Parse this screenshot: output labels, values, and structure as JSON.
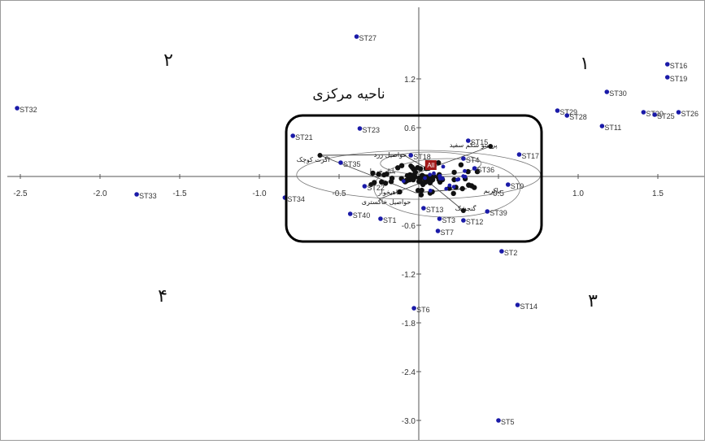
{
  "chart_data": {
    "type": "scatter",
    "title": "",
    "xlabel": "",
    "ylabel": "",
    "xlim": [
      -2.6,
      1.8
    ],
    "ylim": [
      -3.1,
      1.8
    ],
    "x_ticks": [
      -2.5,
      -2.0,
      -1.5,
      -1.0,
      -0.5,
      0.5,
      1.0,
      1.5
    ],
    "x_tick_labels": [
      "-2.5",
      "-2.0",
      "-1.5",
      "-1.0",
      "-0.5",
      "0.5",
      "1.0",
      "1.5"
    ],
    "y_ticks": [
      1.2,
      0.6,
      -0.6,
      -1.2,
      -1.8,
      -2.4,
      -3.0
    ],
    "y_tick_labels": [
      "1.2",
      "0.6",
      "-0.6",
      "-1.2",
      "-1.8",
      "-2.4",
      "-3.0"
    ],
    "grid": false,
    "point_color": "#1a1aa8",
    "category_color": "#111111",
    "highlight_color": "#a01818",
    "points": [
      {
        "label": "ST27",
        "x": -0.39,
        "y": 1.72
      },
      {
        "label": "ST16",
        "x": 1.56,
        "y": 1.38
      },
      {
        "label": "ST19",
        "x": 1.56,
        "y": 1.22
      },
      {
        "label": "ST32",
        "x": -2.52,
        "y": 0.84
      },
      {
        "label": "ST30",
        "x": 1.18,
        "y": 1.04
      },
      {
        "label": "ST29",
        "x": 0.87,
        "y": 0.81
      },
      {
        "label": "ST28",
        "x": 0.93,
        "y": 0.75
      },
      {
        "label": "ST20",
        "x": 1.41,
        "y": 0.79
      },
      {
        "label": "ST25",
        "x": 1.48,
        "y": 0.76
      },
      {
        "label": "ST26",
        "x": 1.63,
        "y": 0.79
      },
      {
        "label": "ST11",
        "x": 1.15,
        "y": 0.62
      },
      {
        "label": "ST21",
        "x": -0.79,
        "y": 0.5
      },
      {
        "label": "ST23",
        "x": -0.37,
        "y": 0.59
      },
      {
        "label": "ST15",
        "x": 0.31,
        "y": 0.44
      },
      {
        "label": "ST17",
        "x": 0.63,
        "y": 0.27
      },
      {
        "label": "ST4",
        "x": 0.28,
        "y": 0.22
      },
      {
        "label": "ST18",
        "x": -0.05,
        "y": 0.26
      },
      {
        "label": "ST35",
        "x": -0.49,
        "y": 0.17
      },
      {
        "label": "ST36",
        "x": 0.35,
        "y": 0.1
      },
      {
        "label": "ST22",
        "x": -0.34,
        "y": -0.12
      },
      {
        "label": "ST9",
        "x": 0.56,
        "y": -0.1
      },
      {
        "label": "ST34",
        "x": -0.84,
        "y": -0.26
      },
      {
        "label": "ST40",
        "x": -0.43,
        "y": -0.46
      },
      {
        "label": "ST1",
        "x": -0.24,
        "y": -0.52
      },
      {
        "label": "ST13",
        "x": 0.03,
        "y": -0.39
      },
      {
        "label": "ST3",
        "x": 0.13,
        "y": -0.52
      },
      {
        "label": "ST7",
        "x": 0.12,
        "y": -0.67
      },
      {
        "label": "ST12",
        "x": 0.28,
        "y": -0.54
      },
      {
        "label": "ST39",
        "x": 0.43,
        "y": -0.43
      },
      {
        "label": "ST2",
        "x": 0.52,
        "y": -0.92
      },
      {
        "label": "ST14",
        "x": 0.62,
        "y": -1.58
      },
      {
        "label": "ST6",
        "x": -0.03,
        "y": -1.62
      },
      {
        "label": "ST33",
        "x": -1.77,
        "y": -0.22
      },
      {
        "label": "ST5",
        "x": 0.5,
        "y": -3.0
      }
    ],
    "highlight_label": "All",
    "category_labels": [
      "پرستو شکم سفید",
      "اگرت کوچک",
      "حواصیل زرد",
      "بلبل خرما",
      "ماهیخوار",
      "حواصیل خاکستری",
      "یاکریم",
      "گنجشک"
    ],
    "quadrant_labels": [
      "۱",
      "۲",
      "۳",
      "۴"
    ],
    "region_label": "ناحیه مرکزی"
  }
}
